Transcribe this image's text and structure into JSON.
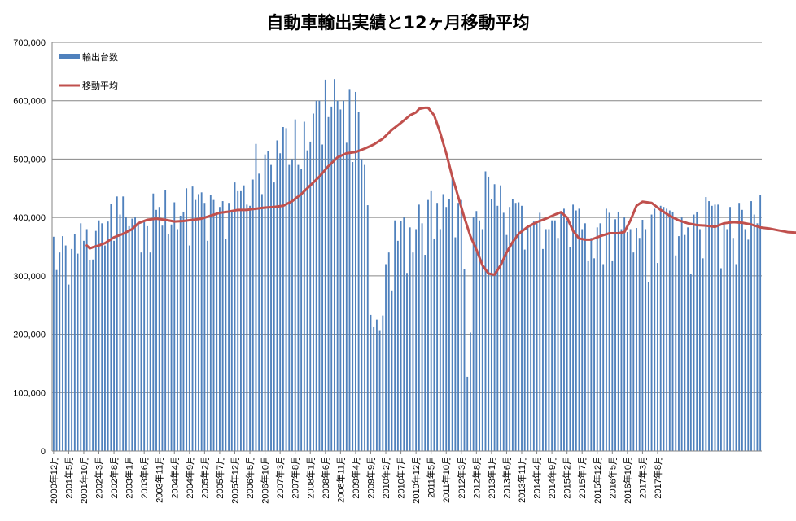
{
  "chart_data": {
    "type": "bar+line",
    "title": "自動車輸出実績と12ヶ月移動平均",
    "ylim": [
      0,
      700000
    ],
    "yticks": [
      "0",
      "100,000",
      "200,000",
      "300,000",
      "400,000",
      "500,000",
      "600,000",
      "700,000"
    ],
    "ytick_values": [
      0,
      100000,
      200000,
      300000,
      400000,
      500000,
      600000,
      700000
    ],
    "grid": true,
    "legend_position": "top-left",
    "colors": {
      "bar": "#4F81BD",
      "line": "#C0504D",
      "grid": "#868686"
    },
    "start_month": "2000年12月",
    "x_labels": [
      "2000年12月",
      "2001年5月",
      "2001年10月",
      "2002年3月",
      "2002年8月",
      "2003年1月",
      "2003年6月",
      "2003年11月",
      "2004年4月",
      "2004年9月",
      "2005年2月",
      "2005年7月",
      "2005年12月",
      "2006年5月",
      "2006年10月",
      "2007年3月",
      "2007年8月",
      "2008年1月",
      "2008年6月",
      "2008年11月",
      "2009年4月",
      "2009年9月",
      "2010年2月",
      "2010年7月",
      "2010年12月",
      "2011年5月",
      "2011年10月",
      "2012年3月",
      "2012年8月",
      "2013年1月",
      "2013年6月",
      "2013年11月",
      "2014年4月",
      "2014年9月",
      "2015年2月",
      "2015年7月",
      "2015年12月",
      "2016年5月",
      "2016年10月",
      "2017年3月",
      "2017年8月"
    ],
    "series": [
      {
        "name": "輸出台数",
        "type": "bar",
        "values": [
          367000,
          310000,
          340000,
          368000,
          352000,
          285000,
          346000,
          372000,
          338000,
          390000,
          360000,
          380000,
          327000,
          328000,
          377000,
          395000,
          390000,
          352000,
          393000,
          423000,
          360000,
          436000,
          405000,
          436000,
          400000,
          385000,
          398000,
          400000,
          390000,
          340000,
          392000,
          385000,
          340000,
          441000,
          413000,
          418000,
          386000,
          447000,
          372000,
          388000,
          426000,
          380000,
          403000,
          410000,
          450000,
          352000,
          453000,
          430000,
          440000,
          443000,
          425000,
          360000,
          438000,
          430000,
          408000,
          418000,
          428000,
          363000,
          425000,
          412000,
          460000,
          445000,
          445000,
          455000,
          422000,
          420000,
          465000,
          526000,
          475000,
          440000,
          508000,
          514000,
          490000,
          460000,
          532000,
          510000,
          555000,
          553000,
          490000,
          500000,
          568000,
          490000,
          483000,
          564000,
          515000,
          530000,
          578000,
          600000,
          600000,
          525000,
          636000,
          572000,
          590000,
          637000,
          600000,
          585000,
          600000,
          528000,
          620000,
          495000,
          615000,
          581000,
          500000,
          490000,
          421000,
          233000,
          212000,
          225000,
          207000,
          232000,
          320000,
          340000,
          275000,
          395000,
          360000,
          394000,
          400000,
          305000,
          383000,
          340000,
          380000,
          422000,
          390000,
          336000,
          430000,
          445000,
          364000,
          425000,
          380000,
          440000,
          418000,
          432000,
          468000,
          366000,
          425000,
          430000,
          312000,
          127000,
          203000,
          400000,
          411000,
          395000,
          380000,
          479000,
          470000,
          432000,
          457000,
          420000,
          455000,
          408000,
          370000,
          418000,
          432000,
          425000,
          426000,
          420000,
          345000,
          385000,
          387000,
          393000,
          390000,
          408000,
          346000,
          380000,
          380000,
          395000,
          395000,
          365000,
          410000,
          415000,
          395000,
          350000,
          422000,
          412000,
          415000,
          380000,
          390000,
          325000,
          365000,
          330000,
          383000,
          390000,
          320000,
          415000,
          408000,
          325000,
          397000,
          410000,
          380000,
          400000,
          375000,
          380000,
          340000,
          382000,
          365000,
          396000,
          380000,
          290000,
          405000,
          415000,
          322000,
          420000,
          418000,
          415000,
          412000,
          410000,
          335000,
          368000,
          400000,
          370000,
          383000,
          303000,
          405000,
          410000,
          380000,
          330000,
          435000,
          428000,
          420000,
          422000,
          422000,
          313000,
          390000,
          380000,
          418000,
          365000,
          320000,
          425000,
          413000,
          380000,
          362000,
          428000,
          405000,
          390000,
          438000
        ]
      },
      {
        "name": "移動平均",
        "type": "line",
        "points": [
          [
            11,
            352000
          ],
          [
            12,
            347000
          ],
          [
            13,
            349000
          ],
          [
            15,
            352000
          ],
          [
            17,
            356000
          ],
          [
            20,
            366000
          ],
          [
            23,
            372000
          ],
          [
            26,
            380000
          ],
          [
            28,
            390000
          ],
          [
            31,
            396000
          ],
          [
            34,
            398000
          ],
          [
            37,
            396000
          ],
          [
            40,
            393000
          ],
          [
            43,
            394000
          ],
          [
            46,
            396000
          ],
          [
            49,
            398000
          ],
          [
            52,
            403000
          ],
          [
            55,
            408000
          ],
          [
            58,
            410000
          ],
          [
            61,
            413000
          ],
          [
            64,
            413000
          ],
          [
            67,
            415000
          ],
          [
            70,
            417000
          ],
          [
            73,
            418000
          ],
          [
            76,
            420000
          ],
          [
            79,
            428000
          ],
          [
            82,
            440000
          ],
          [
            85,
            455000
          ],
          [
            88,
            470000
          ],
          [
            91,
            488000
          ],
          [
            94,
            503000
          ],
          [
            97,
            510000
          ],
          [
            100,
            512000
          ],
          [
            103,
            518000
          ],
          [
            106,
            525000
          ],
          [
            109,
            535000
          ],
          [
            112,
            550000
          ],
          [
            115,
            562000
          ],
          [
            118,
            575000
          ],
          [
            120,
            580000
          ],
          [
            121,
            586000
          ],
          [
            123,
            588000
          ],
          [
            124,
            588000
          ],
          [
            126,
            575000
          ],
          [
            128,
            545000
          ],
          [
            130,
            510000
          ],
          [
            132,
            470000
          ],
          [
            134,
            435000
          ],
          [
            136,
            400000
          ],
          [
            138,
            368000
          ],
          [
            140,
            345000
          ],
          [
            142,
            318000
          ],
          [
            144,
            304000
          ],
          [
            146,
            302000
          ],
          [
            148,
            318000
          ],
          [
            150,
            340000
          ],
          [
            152,
            358000
          ],
          [
            154,
            372000
          ],
          [
            157,
            384000
          ],
          [
            160,
            392000
          ],
          [
            163,
            398000
          ],
          [
            166,
            405000
          ],
          [
            168,
            409000
          ],
          [
            170,
            400000
          ],
          [
            172,
            377000
          ],
          [
            174,
            364000
          ],
          [
            176,
            362000
          ],
          [
            178,
            362000
          ],
          [
            181,
            368000
          ],
          [
            184,
            373000
          ],
          [
            187,
            373000
          ],
          [
            189,
            375000
          ],
          [
            191,
            395000
          ],
          [
            193,
            420000
          ],
          [
            195,
            427000
          ],
          [
            198,
            425000
          ],
          [
            201,
            413000
          ],
          [
            204,
            403000
          ],
          [
            207,
            395000
          ],
          [
            210,
            390000
          ],
          [
            213,
            387000
          ],
          [
            216,
            386000
          ],
          [
            219,
            384000
          ],
          [
            222,
            390000
          ],
          [
            225,
            392000
          ],
          [
            228,
            391000
          ],
          [
            231,
            388000
          ],
          [
            234,
            383000
          ],
          [
            237,
            381000
          ],
          [
            240,
            378000
          ],
          [
            243,
            375000
          ],
          [
            246,
            374000
          ],
          [
            249,
            374000
          ],
          [
            252,
            375000
          ],
          [
            255,
            373000
          ],
          [
            258,
            373000
          ],
          [
            261,
            373000
          ],
          [
            264,
            373000
          ],
          [
            267,
            375000
          ],
          [
            269,
            382000
          ],
          [
            272,
            382000
          ],
          [
            275,
            382000
          ],
          [
            278,
            382000
          ],
          [
            281,
            383000
          ],
          [
            284,
            385000
          ],
          [
            287,
            386000
          ],
          [
            290,
            386000
          ],
          [
            293,
            385000
          ],
          [
            296,
            387000
          ],
          [
            299,
            390000
          ],
          [
            302,
            390000
          ],
          [
            305,
            392000
          ],
          [
            308,
            390000
          ],
          [
            311,
            391000
          ]
        ]
      }
    ]
  }
}
